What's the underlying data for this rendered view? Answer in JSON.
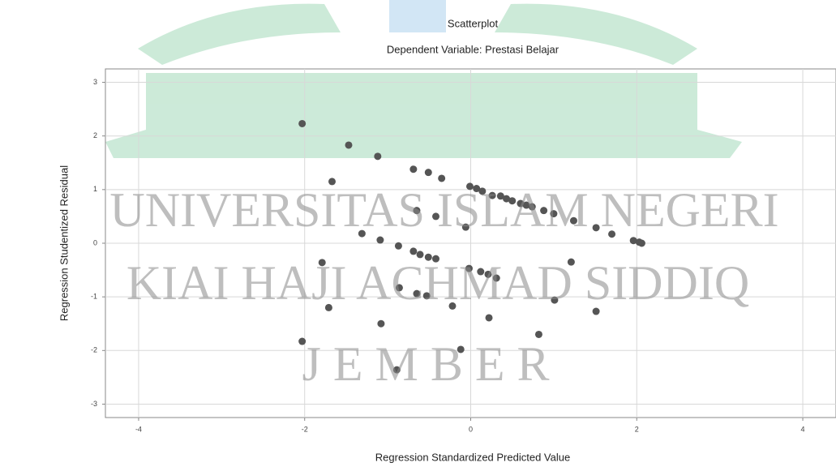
{
  "chart_data": {
    "type": "scatter",
    "title": "Scatterplot",
    "subtitle": "Dependent Variable: Prestasi Belajar",
    "x_label": "Regression Standardized Predicted Value",
    "y_label": "Regression Studentized Residual",
    "watermark": [
      "UNIVERSITAS ISLAM NEGERI",
      "KIAI HAJI ACHMAD SIDDIQ",
      "J E M B E R"
    ],
    "color": "#555555",
    "grid": true,
    "xlim": [
      -4.4,
      4.4
    ],
    "xticks": [
      -4,
      -2,
      0,
      2,
      4
    ],
    "ylim": [
      -3.25,
      3.25
    ],
    "yticks": [
      -3,
      -2,
      -1,
      0,
      1,
      2,
      3
    ],
    "x": [
      -2.03,
      -1.47,
      -1.12,
      -1.67,
      -0.69,
      -0.51,
      -0.35,
      -0.01,
      0.07,
      0.14,
      0.26,
      0.36,
      0.43,
      0.5,
      0.6,
      0.67,
      0.74,
      0.88,
      1.0,
      1.24,
      1.51,
      1.7,
      1.96,
      2.06,
      2.03,
      -0.65,
      -0.42,
      -0.06,
      -1.31,
      -1.09,
      -0.87,
      -0.69,
      -0.61,
      -0.51,
      -0.42,
      -0.02,
      0.12,
      0.21,
      0.31,
      -1.79,
      1.21,
      -0.86,
      -0.65,
      -0.53,
      -0.22,
      1.01,
      -1.71,
      1.51,
      0.22,
      -1.08,
      0.82,
      -2.03,
      -0.12,
      -0.89
    ],
    "y": [
      2.23,
      1.83,
      1.62,
      1.15,
      1.38,
      1.32,
      1.21,
      1.06,
      1.02,
      0.97,
      0.89,
      0.88,
      0.83,
      0.79,
      0.74,
      0.71,
      0.68,
      0.61,
      0.55,
      0.42,
      0.29,
      0.17,
      0.05,
      0.0,
      0.02,
      0.61,
      0.5,
      0.3,
      0.18,
      0.06,
      -0.05,
      -0.15,
      -0.21,
      -0.26,
      -0.29,
      -0.47,
      -0.53,
      -0.58,
      -0.65,
      -0.36,
      -0.35,
      -0.83,
      -0.94,
      -0.98,
      -1.17,
      -1.06,
      -1.2,
      -1.27,
      -1.39,
      -1.5,
      -1.7,
      -1.83,
      -1.98,
      -2.36
    ]
  }
}
